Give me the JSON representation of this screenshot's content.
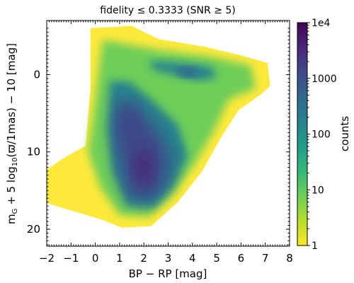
{
  "chart_data": {
    "type": "heatmap",
    "title": "fidelity ≤ 0.3333 (SNR ≥ 5)",
    "xlabel": "BP − RP [mag]",
    "ylabel": "m_G + 5 log10(ϖ/1mas) − 10 [mag]",
    "ylabel_parts": {
      "m": "m",
      "sub_g": "G",
      "mid": " + 5 log",
      "sub_10": "10",
      "end": "(ϖ/1mas) − 10 [mag]"
    },
    "xlim": [
      -2,
      8
    ],
    "ylim": [
      22.2,
      -7
    ],
    "y_inverted": true,
    "x_ticks": [
      "−2",
      "−1",
      "0",
      "1",
      "2",
      "3",
      "4",
      "5",
      "6",
      "7",
      "8"
    ],
    "x_tick_values": [
      -2,
      -1,
      0,
      1,
      2,
      3,
      4,
      5,
      6,
      7,
      8
    ],
    "y_ticks": [
      "0",
      "10",
      "20"
    ],
    "y_tick_values": [
      0,
      10,
      20
    ],
    "colorbar": {
      "label": "counts",
      "scale": "log",
      "range": [
        1,
        10000
      ],
      "tick_labels": [
        "1e4",
        "1000",
        "100",
        "10",
        "1"
      ],
      "tick_values": [
        10000,
        1000,
        100,
        10,
        1
      ],
      "colormap": "viridis_r",
      "colors": [
        "#fde725",
        "#b5de2b",
        "#6ece58",
        "#35b779",
        "#1f9e89",
        "#26828e",
        "#31688e",
        "#3e4989",
        "#482878",
        "#440154"
      ]
    },
    "density_regions": [
      {
        "name": "envelope",
        "x_range": [
          -2,
          7.2
        ],
        "y_range": [
          -6,
          19.8
        ],
        "counts": 1
      },
      {
        "name": "wide-halo",
        "center": [
          3.0,
          5.5
        ],
        "counts": 10
      },
      {
        "name": "main-ridge",
        "center": [
          1.6,
          8.5
        ],
        "counts": 1000
      },
      {
        "name": "peak-lower",
        "center": [
          2.0,
          12.0
        ],
        "counts": 3000
      },
      {
        "name": "peak-upper",
        "center": [
          1.4,
          6.5
        ],
        "counts": 2000
      },
      {
        "name": "giant-clump",
        "center": [
          3.8,
          -0.3
        ],
        "counts": 300
      },
      {
        "name": "blue-tail",
        "center": [
          -1.5,
          13.5
        ],
        "counts": 2
      }
    ]
  }
}
